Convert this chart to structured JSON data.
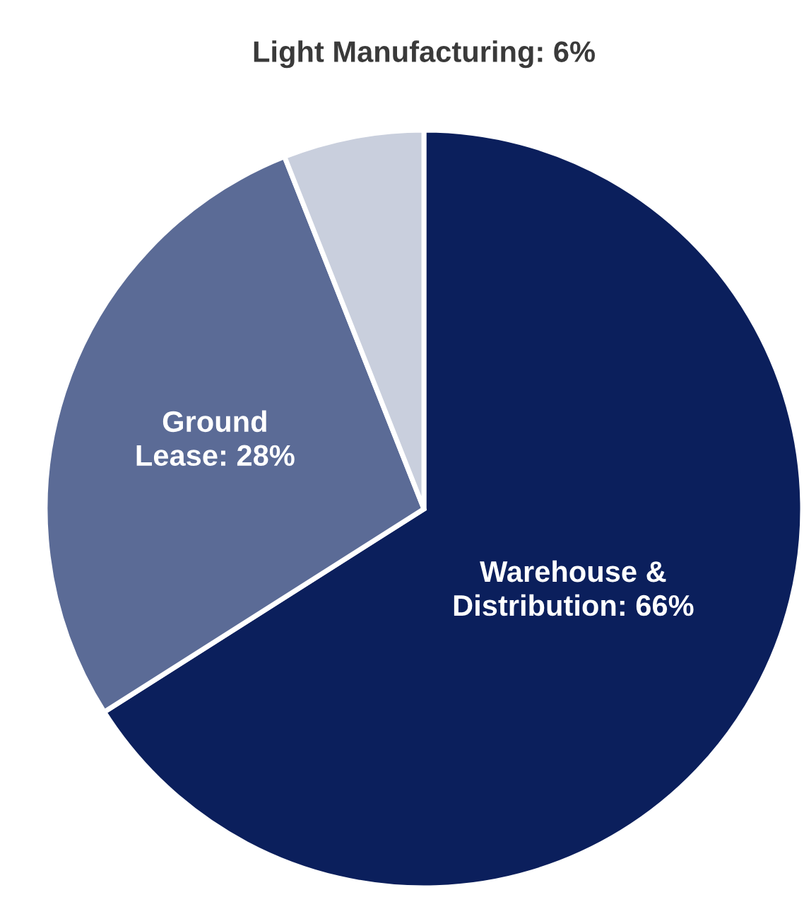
{
  "chart_data": {
    "type": "pie",
    "categories": [
      "Warehouse &\nDistribution",
      "Ground\nLease",
      "Light Manufacturing"
    ],
    "values": [
      66,
      28,
      6
    ],
    "colors": [
      "#0b1f5c",
      "#5b6b96",
      "#c9cfdd"
    ],
    "value_labels": [
      "66%",
      "28%",
      "6%"
    ]
  }
}
